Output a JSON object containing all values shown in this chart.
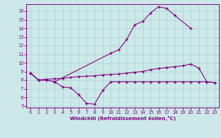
{
  "series1_x": [
    0,
    1,
    2,
    3,
    10,
    11,
    12,
    13,
    14,
    15,
    16,
    17,
    18,
    20
  ],
  "series1_y": [
    8.8,
    8.0,
    8.0,
    7.8,
    11.1,
    11.5,
    12.7,
    14.4,
    14.8,
    15.8,
    16.5,
    16.3,
    15.5,
    14.0
  ],
  "series2_x": [
    0,
    1,
    2,
    3,
    4,
    5,
    6,
    7,
    8,
    9,
    10,
    11,
    12,
    13,
    14,
    15,
    16,
    17,
    18,
    19,
    20,
    21,
    22,
    23
  ],
  "series2_y": [
    8.8,
    8.0,
    8.1,
    8.15,
    8.2,
    8.3,
    8.4,
    8.45,
    8.5,
    8.6,
    8.65,
    8.7,
    8.8,
    8.9,
    9.0,
    9.2,
    9.35,
    9.45,
    9.55,
    9.65,
    9.85,
    9.4,
    7.8,
    7.7
  ],
  "series3_x": [
    0,
    1,
    2,
    3,
    4,
    5,
    6,
    7,
    8,
    9,
    10,
    11,
    12,
    13,
    14,
    15,
    16,
    17,
    18,
    19,
    20,
    21,
    22,
    23
  ],
  "series3_y": [
    8.8,
    8.0,
    8.0,
    7.8,
    7.2,
    7.1,
    6.3,
    5.3,
    5.2,
    6.8,
    7.8,
    7.8,
    7.8,
    7.8,
    7.8,
    7.8,
    7.8,
    7.8,
    7.8,
    7.8,
    7.8,
    7.8,
    7.8,
    7.7
  ],
  "color": "#800080",
  "bg_color": "#cce8e8",
  "grid_color": "#aad0d0",
  "xlabel": "Windchill (Refroidissement éolien,°C)",
  "xlim": [
    -0.5,
    23.5
  ],
  "ylim": [
    4.8,
    16.8
  ],
  "yticks": [
    5,
    6,
    7,
    8,
    9,
    10,
    11,
    12,
    13,
    14,
    15,
    16
  ],
  "xticks": [
    0,
    1,
    2,
    3,
    4,
    5,
    6,
    7,
    8,
    9,
    10,
    11,
    12,
    13,
    14,
    15,
    16,
    17,
    18,
    19,
    20,
    21,
    22,
    23
  ]
}
